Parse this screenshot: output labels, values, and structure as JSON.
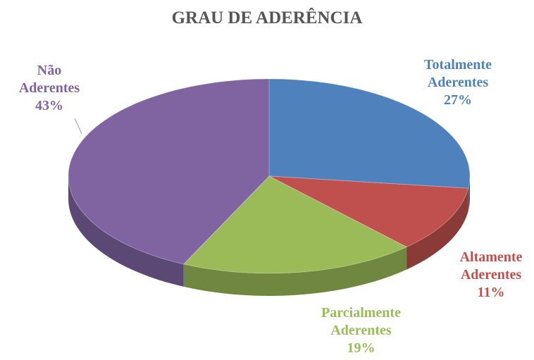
{
  "chart_data": {
    "type": "pie",
    "title": "GRAU DE ADERÊNCIA",
    "categories": [
      "Totalmente Aderentes",
      "Altamente Aderentes",
      "Parcialmente Aderentes",
      "Não Aderentes"
    ],
    "values": [
      27,
      11,
      19,
      43
    ],
    "value_labels": [
      "27%",
      "11%",
      "19%",
      "43%"
    ],
    "colors": [
      "#4f81bd",
      "#c0504d",
      "#9bbb59",
      "#8064a2"
    ]
  }
}
